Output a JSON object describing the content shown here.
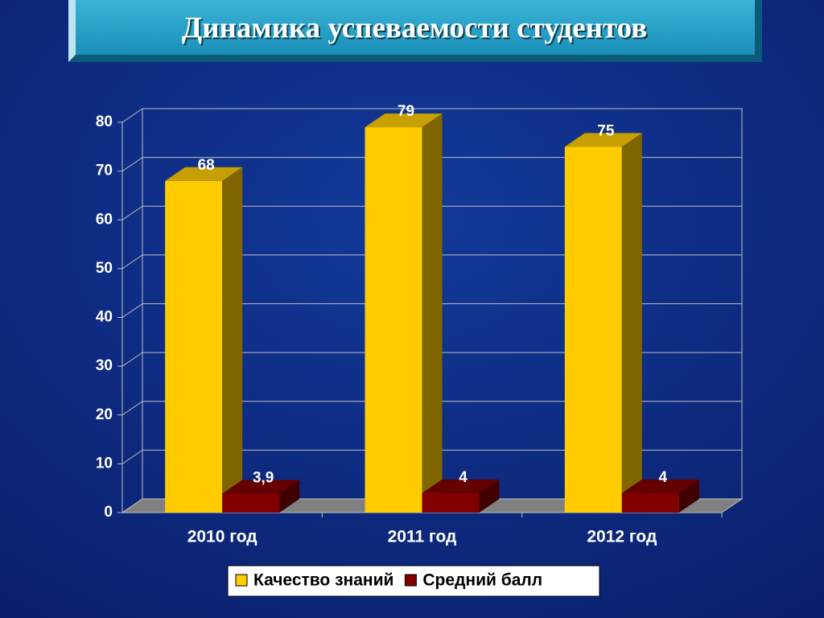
{
  "chart_data": {
    "type": "bar3d",
    "title": "Динамика успеваемости студентов",
    "categories": [
      "2010 год",
      "2011 год",
      "2012 год"
    ],
    "series": [
      {
        "name": "Качество знаний",
        "color": "#FFCC00",
        "values": [
          68,
          79,
          75
        ]
      },
      {
        "name": "Средний балл",
        "color": "#800000",
        "values": [
          3.9,
          4,
          4
        ],
        "value_labels": [
          "3,9",
          "4",
          "4"
        ]
      }
    ],
    "ylim": [
      0,
      80
    ],
    "yticks": [
      0,
      10,
      20,
      30,
      40,
      50,
      60,
      70,
      80
    ],
    "grid": true,
    "legend": "bottom"
  }
}
